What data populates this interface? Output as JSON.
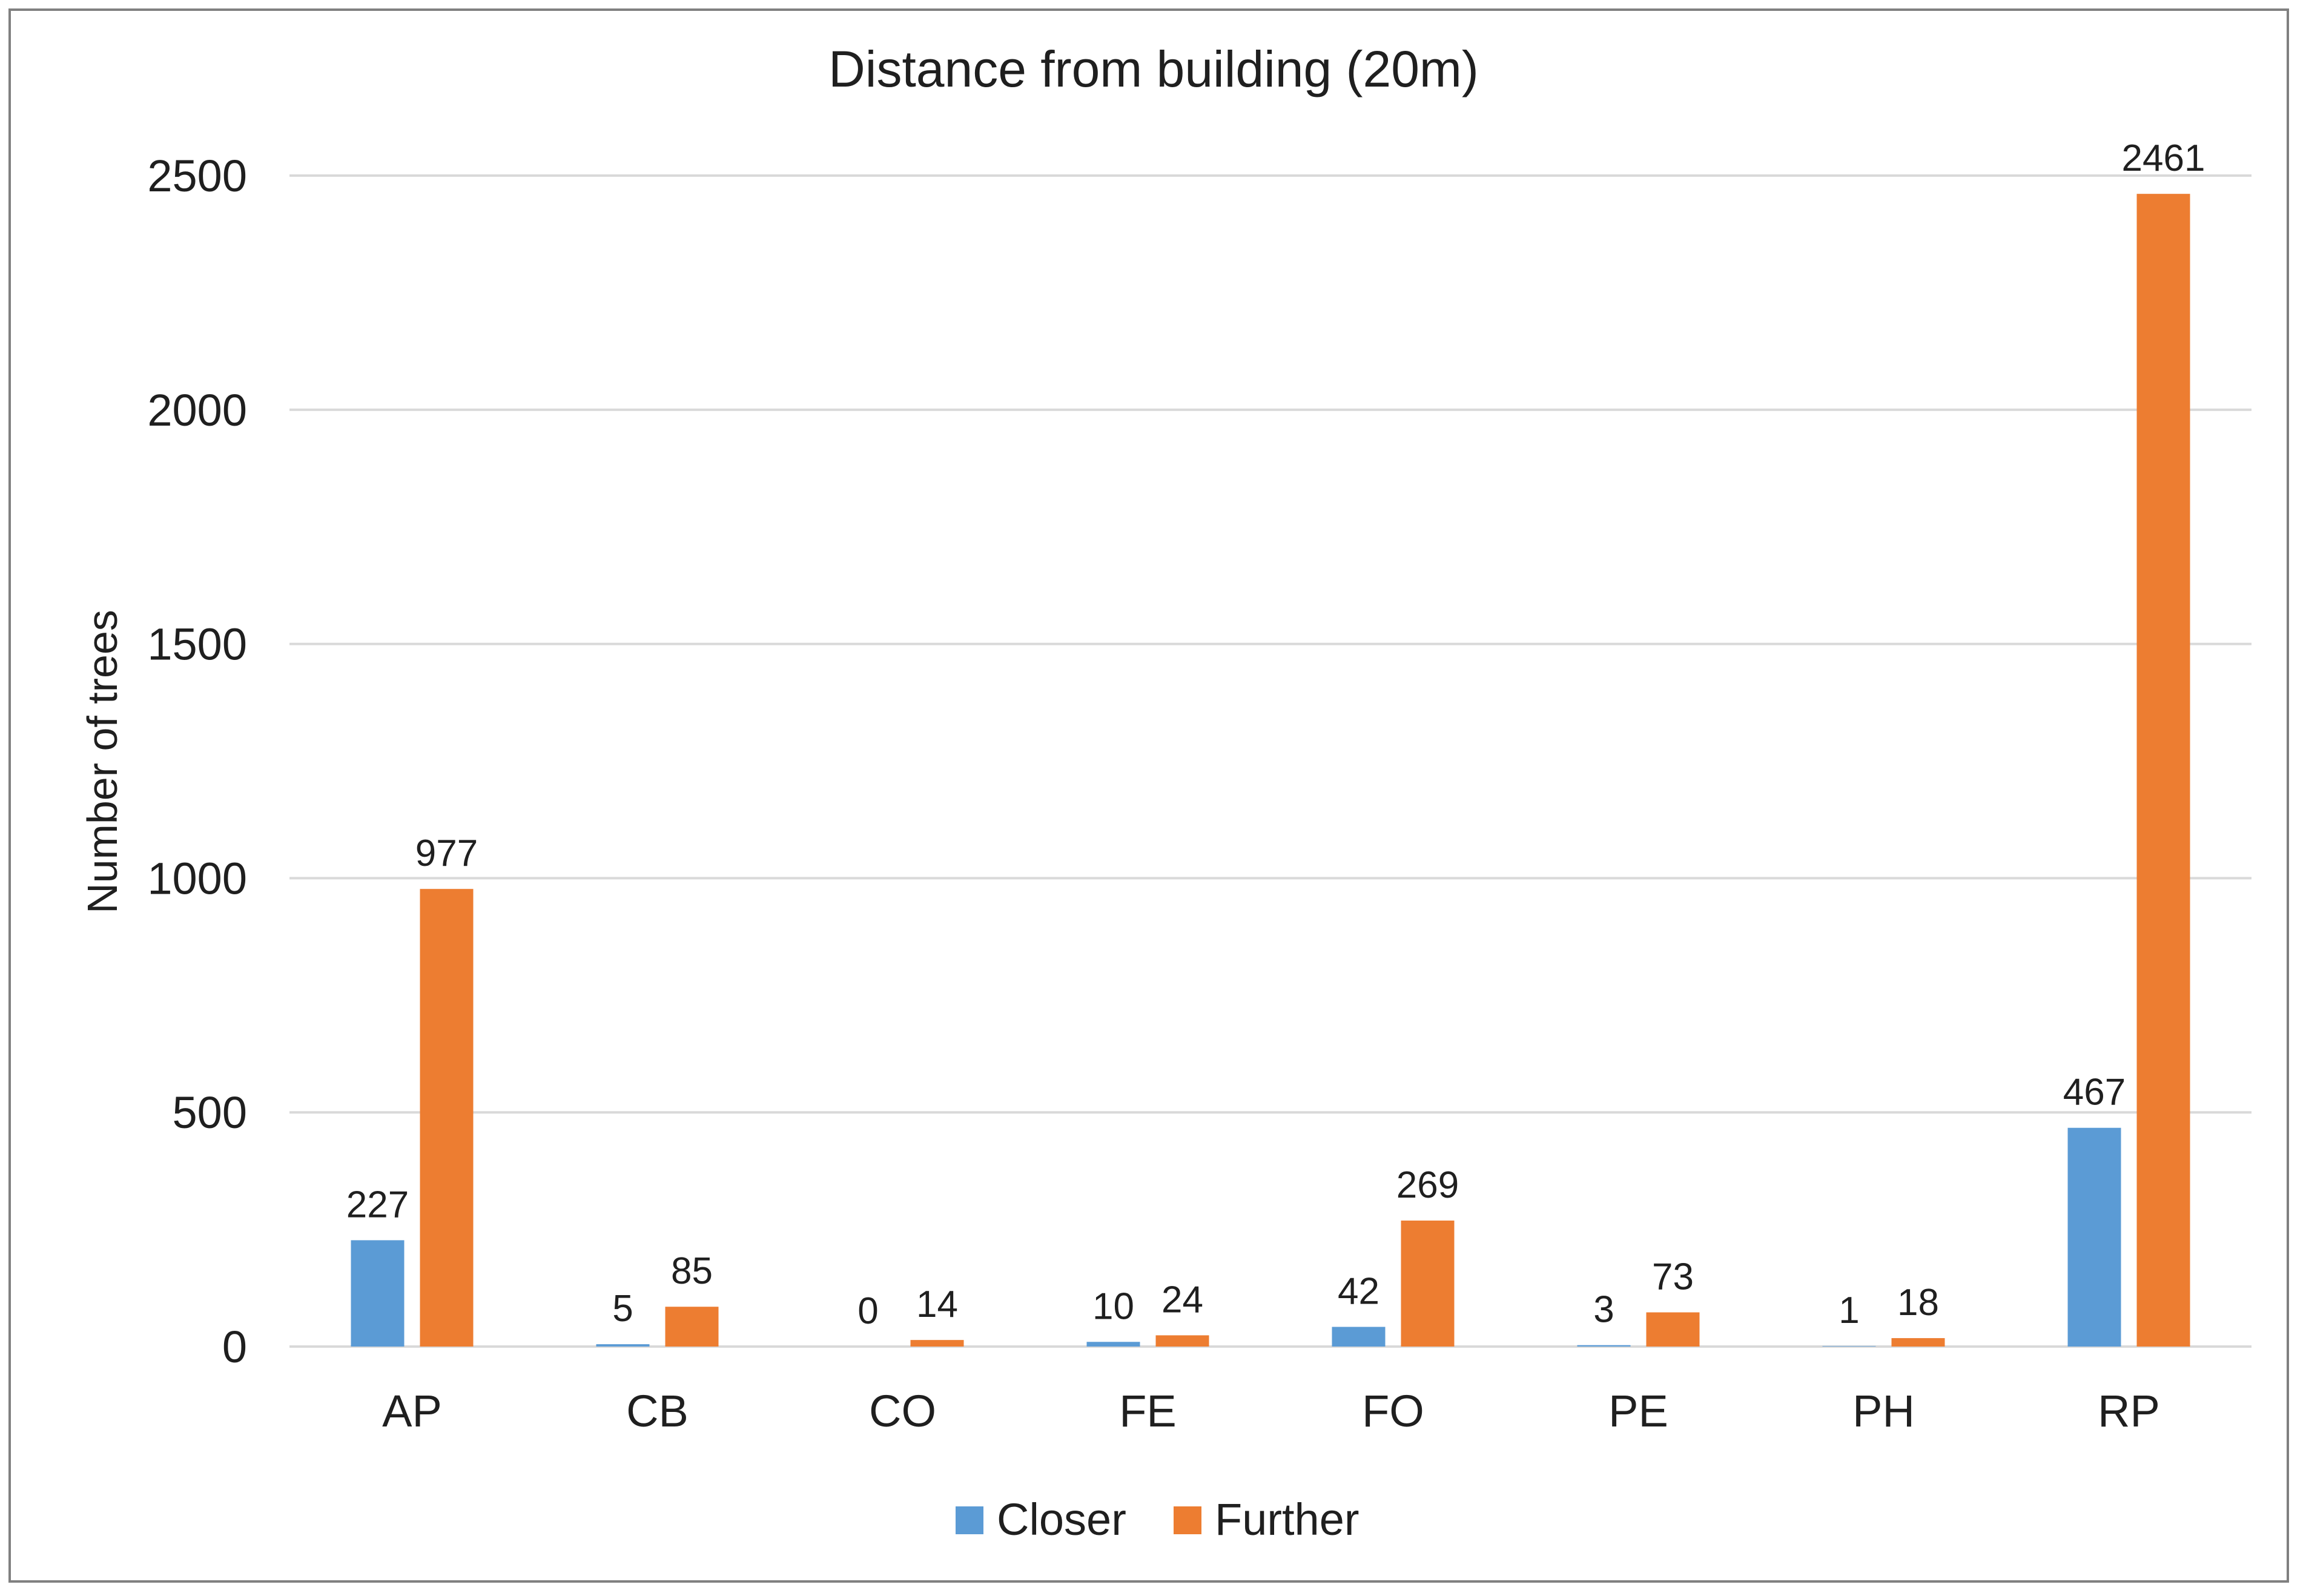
{
  "chart_data": {
    "type": "bar",
    "title": "Distance from building (20m)",
    "xlabel": "",
    "ylabel": "Number of  trees",
    "ylim": [
      0,
      2500
    ],
    "yticks": [
      0,
      500,
      1000,
      1500,
      2000,
      2500
    ],
    "grid": true,
    "legend_position": "bottom",
    "categories": [
      "AP",
      "CB",
      "CO",
      "FE",
      "FO",
      "PE",
      "PH",
      "RP"
    ],
    "series": [
      {
        "name": "Closer",
        "color": "#5b9bd5",
        "values": [
          227,
          5,
          0,
          10,
          42,
          3,
          1,
          467
        ]
      },
      {
        "name": "Further",
        "color": "#ed7d31",
        "values": [
          977,
          85,
          14,
          24,
          269,
          73,
          18,
          2461
        ]
      }
    ]
  }
}
